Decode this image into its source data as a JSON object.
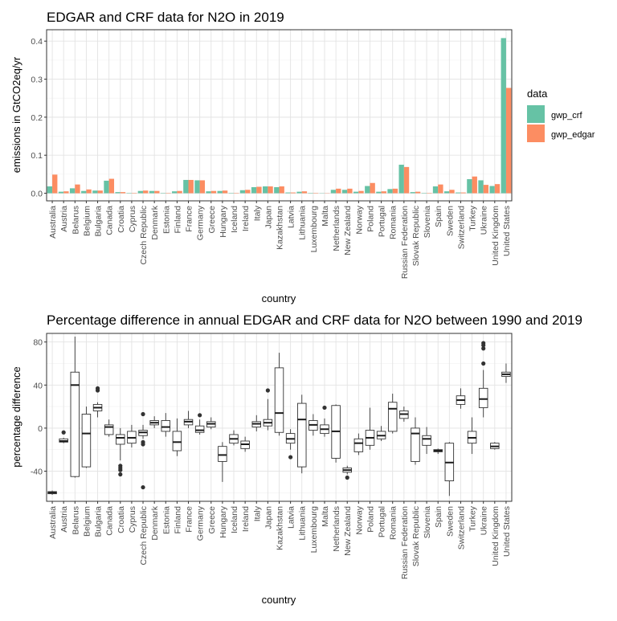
{
  "colors": {
    "gwp_crf": "#66c2a5",
    "gwp_edgar": "#fc8d62"
  },
  "chart_data": [
    {
      "type": "bar",
      "title": "EDGAR and CRF data for N2O in 2019",
      "xlabel": "country",
      "ylabel": "emissions in GtCO2eq/yr",
      "ylim": [
        -0.02,
        0.43
      ],
      "yticks": [
        0.0,
        0.1,
        0.2,
        0.3,
        0.4
      ],
      "ytick_labels": [
        "0.0",
        "0.1",
        "0.2",
        "0.3",
        "0.4"
      ],
      "legend": {
        "title": "data",
        "position": "right",
        "entries": [
          "gwp_crf",
          "gwp_edgar"
        ]
      },
      "grid": true,
      "categories": [
        "Australia",
        "Austria",
        "Belarus",
        "Belgium",
        "Bulgaria",
        "Canada",
        "Croatia",
        "Cyprus",
        "Czech Republic",
        "Denmark",
        "Estonia",
        "Finland",
        "France",
        "Germany",
        "Greece",
        "Hungary",
        "Iceland",
        "Ireland",
        "Italy",
        "Japan",
        "Kazakhstan",
        "Latvia",
        "Lithuania",
        "Luxembourg",
        "Malta",
        "Netherlands",
        "New Zealand",
        "Norway",
        "Poland",
        "Portugal",
        "Romania",
        "Russian Federation",
        "Slovak Republic",
        "Slovenia",
        "Spain",
        "Sweden",
        "Switzerland",
        "Turkey",
        "Ukraine",
        "United Kingdom",
        "United States"
      ],
      "series": [
        {
          "name": "gwp_crf",
          "values": [
            0.018,
            0.004,
            0.013,
            0.006,
            0.007,
            0.033,
            0.003,
            0.001,
            0.006,
            0.006,
            0.001,
            0.005,
            0.035,
            0.034,
            0.005,
            0.006,
            0.001,
            0.008,
            0.016,
            0.018,
            0.016,
            0.002,
            0.004,
            0.001,
            0.0,
            0.009,
            0.009,
            0.004,
            0.019,
            0.004,
            0.011,
            0.075,
            0.003,
            0.001,
            0.018,
            0.005,
            0.002,
            0.037,
            0.034,
            0.019,
            0.408
          ]
        },
        {
          "name": "gwp_edgar",
          "values": [
            0.049,
            0.005,
            0.023,
            0.01,
            0.007,
            0.038,
            0.003,
            0.001,
            0.007,
            0.006,
            0.001,
            0.006,
            0.035,
            0.034,
            0.006,
            0.007,
            0.001,
            0.009,
            0.017,
            0.018,
            0.018,
            0.002,
            0.005,
            0.001,
            0.0,
            0.012,
            0.012,
            0.006,
            0.027,
            0.005,
            0.012,
            0.069,
            0.004,
            0.001,
            0.023,
            0.009,
            0.002,
            0.044,
            0.022,
            0.024,
            0.277
          ]
        }
      ]
    },
    {
      "type": "boxplot",
      "title": "Percentage difference in annual EDGAR and CRF data for N2O between 1990 and 2019",
      "xlabel": "country",
      "ylabel": "percentage difference",
      "ylim": [
        -68,
        88
      ],
      "yticks": [
        -40,
        0,
        40,
        80
      ],
      "ytick_labels": [
        "-40",
        "0",
        "40",
        "80"
      ],
      "grid": true,
      "categories": [
        "Australia",
        "Austria",
        "Belarus",
        "Belgium",
        "Bulgaria",
        "Canada",
        "Croatia",
        "Cyprus",
        "Czech Republic",
        "Denmark",
        "Estonia",
        "Finland",
        "France",
        "Germany",
        "Greece",
        "Hungary",
        "Iceland",
        "Ireland",
        "Italy",
        "Japan",
        "Kazakhstan",
        "Latvia",
        "Lithuania",
        "Luxembourg",
        "Malta",
        "Netherlands",
        "New Zealand",
        "Norway",
        "Poland",
        "Portugal",
        "Romania",
        "Russian Federation",
        "Slovak Republic",
        "Slovenia",
        "Spain",
        "Sweden",
        "Switzerland",
        "Turkey",
        "Ukraine",
        "United Kingdom",
        "United States"
      ],
      "boxes": [
        {
          "min": -62,
          "q1": -61,
          "median": -60,
          "q3": -59,
          "max": -58,
          "outliers": []
        },
        {
          "min": -14,
          "q1": -13,
          "median": -12,
          "q3": -10,
          "max": -9,
          "outliers": [
            -4
          ]
        },
        {
          "min": -46,
          "q1": -45,
          "median": 40,
          "q3": 52,
          "max": 85,
          "outliers": []
        },
        {
          "min": -37,
          "q1": -36,
          "median": -5,
          "q3": 13,
          "max": 20,
          "outliers": []
        },
        {
          "min": 10,
          "q1": 16,
          "median": 19,
          "q3": 22,
          "max": 24,
          "outliers": [
            35,
            37
          ]
        },
        {
          "min": -8,
          "q1": -6,
          "median": 1,
          "q3": 3,
          "max": 8,
          "outliers": []
        },
        {
          "min": -30,
          "q1": -15,
          "median": -9,
          "q3": -6,
          "max": 0,
          "outliers": [
            -35,
            -37,
            -39,
            -43
          ]
        },
        {
          "min": -18,
          "q1": -14,
          "median": -9,
          "q3": -3,
          "max": 3,
          "outliers": []
        },
        {
          "min": -10,
          "q1": -7,
          "median": -4,
          "q3": -2,
          "max": 3,
          "outliers": [
            13,
            -13,
            -15,
            -55
          ]
        },
        {
          "min": 0,
          "q1": 3,
          "median": 5,
          "q3": 7,
          "max": 11,
          "outliers": []
        },
        {
          "min": -8,
          "q1": -3,
          "median": 1,
          "q3": 7,
          "max": 14,
          "outliers": []
        },
        {
          "min": -26,
          "q1": -21,
          "median": -13,
          "q3": -3,
          "max": 9,
          "outliers": []
        },
        {
          "min": 0,
          "q1": 3,
          "median": 6,
          "q3": 8,
          "max": 16,
          "outliers": []
        },
        {
          "min": -6,
          "q1": -4,
          "median": -2,
          "q3": 2,
          "max": 8,
          "outliers": [
            12
          ]
        },
        {
          "min": -1,
          "q1": 1,
          "median": 4,
          "q3": 6,
          "max": 10,
          "outliers": []
        },
        {
          "min": -50,
          "q1": -31,
          "median": -25,
          "q3": -17,
          "max": -13,
          "outliers": []
        },
        {
          "min": -16,
          "q1": -14,
          "median": -10,
          "q3": -6,
          "max": -2,
          "outliers": []
        },
        {
          "min": -22,
          "q1": -19,
          "median": -15,
          "q3": -12,
          "max": -8,
          "outliers": []
        },
        {
          "min": -3,
          "q1": 1,
          "median": 4,
          "q3": 6,
          "max": 12,
          "outliers": []
        },
        {
          "min": -2,
          "q1": 2,
          "median": 5,
          "q3": 8,
          "max": 27,
          "outliers": [
            35
          ]
        },
        {
          "min": -7,
          "q1": -4,
          "median": 14,
          "q3": 56,
          "max": 70,
          "outliers": []
        },
        {
          "min": -20,
          "q1": -14,
          "median": -10,
          "q3": -5,
          "max": -1,
          "outliers": [
            -27
          ]
        },
        {
          "min": -42,
          "q1": -36,
          "median": 8,
          "q3": 23,
          "max": 31,
          "outliers": []
        },
        {
          "min": -7,
          "q1": -2,
          "median": 3,
          "q3": 7,
          "max": 13,
          "outliers": []
        },
        {
          "min": -8,
          "q1": -5,
          "median": -1,
          "q3": 3,
          "max": 9,
          "outliers": [
            19
          ]
        },
        {
          "min": -32,
          "q1": -28,
          "median": -3,
          "q3": 21,
          "max": 22,
          "outliers": []
        },
        {
          "min": -43,
          "q1": -41,
          "median": -39,
          "q3": -37,
          "max": -35,
          "outliers": [
            -46
          ]
        },
        {
          "min": -25,
          "q1": -22,
          "median": -14,
          "q3": -10,
          "max": -5,
          "outliers": []
        },
        {
          "min": -20,
          "q1": -16,
          "median": -9,
          "q3": -2,
          "max": 19,
          "outliers": []
        },
        {
          "min": -12,
          "q1": -10,
          "median": -7,
          "q3": -3,
          "max": 2,
          "outliers": []
        },
        {
          "min": -5,
          "q1": -3,
          "median": 18,
          "q3": 24,
          "max": 32,
          "outliers": []
        },
        {
          "min": 6,
          "q1": 9,
          "median": 13,
          "q3": 16,
          "max": 20,
          "outliers": []
        },
        {
          "min": -34,
          "q1": -31,
          "median": -5,
          "q3": 0,
          "max": 10,
          "outliers": []
        },
        {
          "min": -24,
          "q1": -16,
          "median": -10,
          "q3": -7,
          "max": 1,
          "outliers": []
        },
        {
          "min": -24,
          "q1": -22,
          "median": -21,
          "q3": -20,
          "max": -19,
          "outliers": []
        },
        {
          "min": -63,
          "q1": -49,
          "median": -32,
          "q3": -14,
          "max": -13,
          "outliers": []
        },
        {
          "min": 18,
          "q1": 22,
          "median": 26,
          "q3": 30,
          "max": 37,
          "outliers": []
        },
        {
          "min": -24,
          "q1": -14,
          "median": -9,
          "q3": -3,
          "max": 10,
          "outliers": []
        },
        {
          "min": 10,
          "q1": 19,
          "median": 27,
          "q3": 37,
          "max": 54,
          "outliers": [
            60,
            74,
            77,
            79
          ]
        },
        {
          "min": -20,
          "q1": -19,
          "median": -17,
          "q3": -14,
          "max": -13,
          "outliers": []
        },
        {
          "min": 42,
          "q1": 48,
          "median": 50,
          "q3": 52,
          "max": 60,
          "outliers": []
        }
      ]
    }
  ]
}
